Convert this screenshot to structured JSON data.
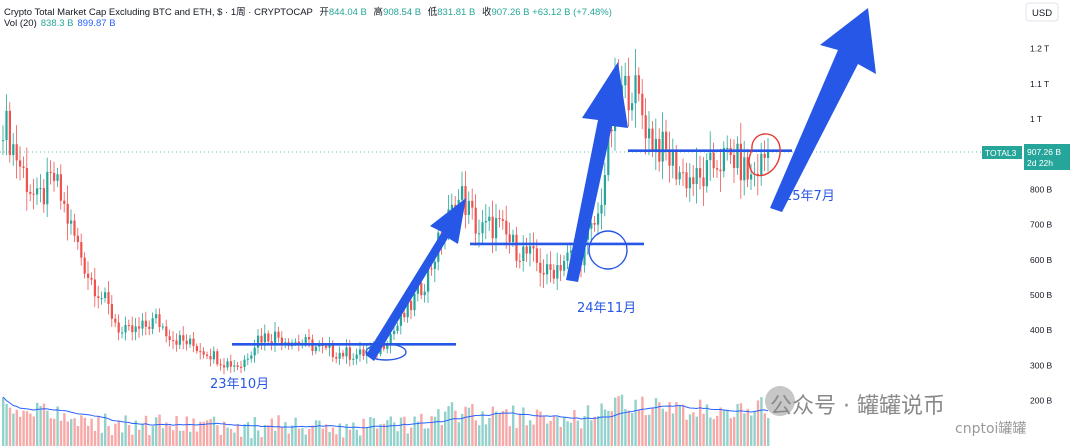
{
  "header": {
    "title": "Crypto Total Market Cap Excluding BTC and ETH, $ · 1周 · CRYPTOCAP",
    "open_label": "开",
    "open": "844.04 B",
    "high_label": "高",
    "high": "908.54 B",
    "low_label": "低",
    "low": "831.81 B",
    "close_label": "收",
    "close": "907.26 B",
    "change": "+63.12 B (+7.48%)"
  },
  "volume": {
    "label": "Vol (20)",
    "value": "838.3 B",
    "ma_value": "899.87 B"
  },
  "watermark": {
    "text": "公众号 · 罐罐说币",
    "sub": "cnptoi罐罐"
  },
  "chart_data": {
    "type": "candlestick",
    "timeframe": "1周",
    "currency": "USD",
    "y_axis_ticks": [
      "1.2 T",
      "1.1 T",
      "1 T",
      "800 B",
      "700 B",
      "600 B",
      "500 B",
      "400 B",
      "300 B",
      "200 B"
    ],
    "y_axis_values": [
      1200,
      1100,
      1000,
      800,
      700,
      600,
      500,
      400,
      300,
      200
    ],
    "ylim": [
      100,
      1230
    ],
    "symbol_tag": "TOTAL3",
    "last_price_label": "907.26 B",
    "countdown_label": "2d 22h",
    "last_price": 907.26,
    "annotations": [
      {
        "text": "23年10月",
        "type": "label"
      },
      {
        "text": "24年11月",
        "type": "label"
      },
      {
        "text": "25年7月",
        "type": "label"
      }
    ],
    "horizontal_lines": [
      {
        "value": 360,
        "from": "2023-06",
        "to": "2023-12"
      },
      {
        "value": 645,
        "from": "2024-03",
        "to": "2024-11"
      },
      {
        "value": 910,
        "from": "2025-01",
        "to": "2025-07"
      }
    ],
    "price_path": [
      [
        0,
        1000
      ],
      [
        5,
        870
      ],
      [
        10,
        760
      ],
      [
        15,
        830
      ],
      [
        20,
        690
      ],
      [
        25,
        560
      ],
      [
        30,
        480
      ],
      [
        35,
        390
      ],
      [
        40,
        400
      ],
      [
        45,
        430
      ],
      [
        50,
        380
      ],
      [
        55,
        360
      ],
      [
        60,
        340
      ],
      [
        65,
        310
      ],
      [
        70,
        300
      ],
      [
        75,
        380
      ],
      [
        80,
        385
      ],
      [
        85,
        370
      ],
      [
        90,
        360
      ],
      [
        95,
        340
      ],
      [
        100,
        335
      ],
      [
        105,
        330
      ],
      [
        110,
        345
      ],
      [
        115,
        400
      ],
      [
        120,
        470
      ],
      [
        125,
        560
      ],
      [
        130,
        700
      ],
      [
        135,
        780
      ],
      [
        140,
        680
      ],
      [
        145,
        700
      ],
      [
        150,
        640
      ],
      [
        155,
        610
      ],
      [
        160,
        560
      ],
      [
        165,
        600
      ],
      [
        170,
        620
      ],
      [
        175,
        720
      ],
      [
        180,
        1050
      ],
      [
        185,
        1100
      ],
      [
        190,
        960
      ],
      [
        195,
        900
      ],
      [
        200,
        840
      ],
      [
        205,
        820
      ],
      [
        210,
        880
      ],
      [
        215,
        890
      ],
      [
        220,
        830
      ],
      [
        225,
        907
      ]
    ]
  }
}
